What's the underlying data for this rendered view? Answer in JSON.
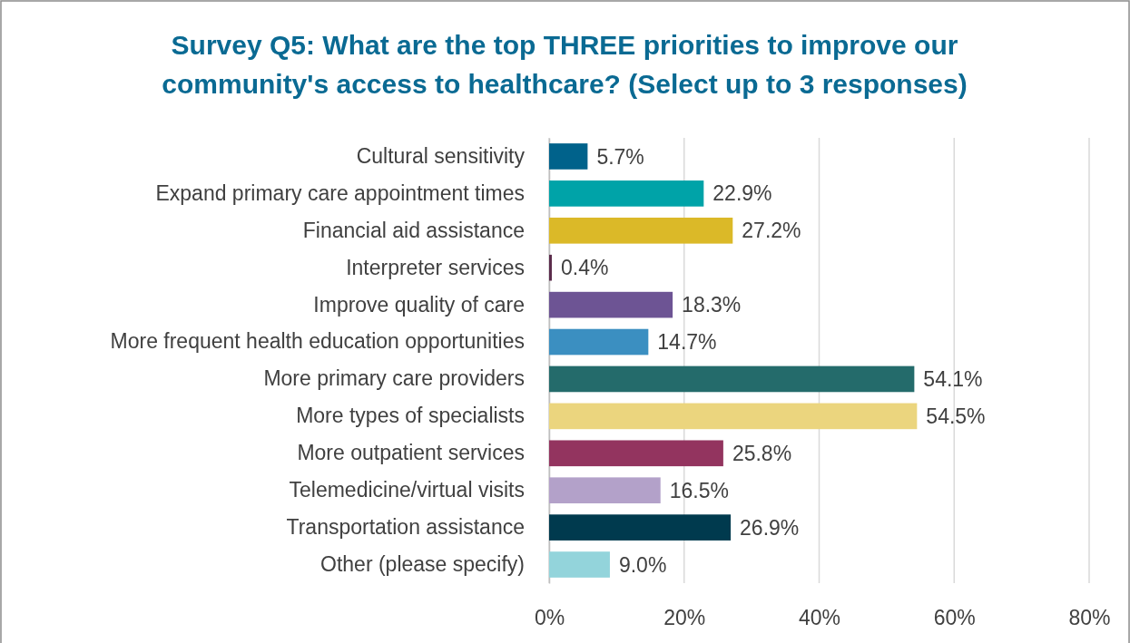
{
  "chart_data": {
    "type": "bar",
    "orientation": "horizontal",
    "title": "Survey Q5: What are the top THREE priorities to improve our community's access to healthcare? (Select up to 3 responses)",
    "categories": [
      "Cultural sensitivity",
      "Expand primary care appointment times",
      "Financial aid assistance",
      "Interpreter services",
      "Improve quality of care",
      "More frequent health education opportunities",
      "More primary care providers",
      "More types of specialists",
      "More outpatient services",
      "Telemedicine/virtual visits",
      "Transportation assistance",
      "Other (please specify)"
    ],
    "values": [
      5.7,
      22.9,
      27.2,
      0.4,
      18.3,
      14.7,
      54.1,
      54.5,
      25.8,
      16.5,
      26.9,
      9.0
    ],
    "value_labels": [
      "5.7%",
      "22.9%",
      "27.2%",
      "0.4%",
      "18.3%",
      "14.7%",
      "54.1%",
      "54.5%",
      "25.8%",
      "16.5%",
      "26.9%",
      "9.0%"
    ],
    "colors": [
      "#00628b",
      "#00a3a8",
      "#dbb928",
      "#5b2c4b",
      "#6d5494",
      "#3b8fc1",
      "#246b6b",
      "#ebd57e",
      "#93345f",
      "#b3a1c9",
      "#003a4e",
      "#93d4db"
    ],
    "xlim": [
      0,
      80
    ],
    "xticks": [
      {
        "value": 0,
        "label": "0%"
      },
      {
        "value": 20,
        "label": "20%"
      },
      {
        "value": 40,
        "label": "40%"
      },
      {
        "value": 60,
        "label": "60%"
      },
      {
        "value": 80,
        "label": "80%"
      }
    ],
    "grid": "x"
  }
}
